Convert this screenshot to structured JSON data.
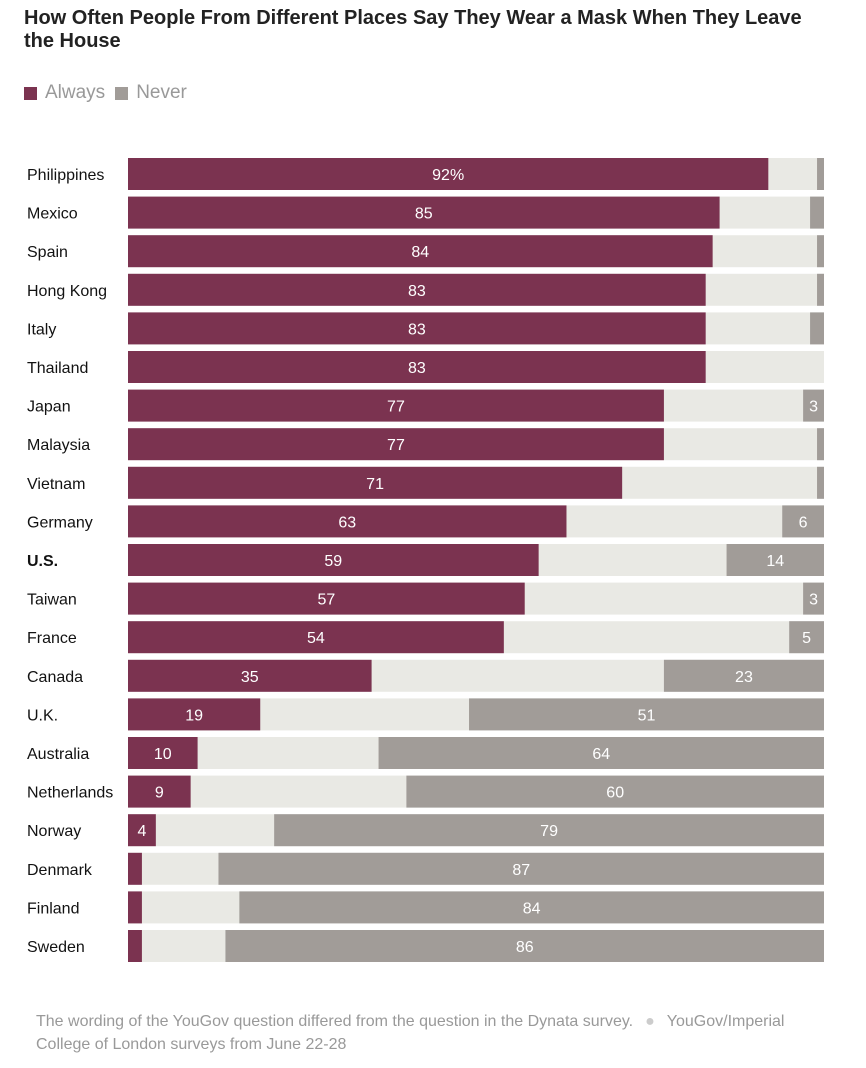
{
  "title": "How Often People From Different Places Say They Wear a Mask When They Leave the House",
  "legend": [
    {
      "label": "Always",
      "color": "#7b3350"
    },
    {
      "label": "Never",
      "color": "#a19c98"
    }
  ],
  "footer": {
    "note": "The wording of the YouGov question differed from the question in the Dynata survey.",
    "source": "YouGov/Imperial College of London surveys from June 22-28"
  },
  "chart_data": {
    "type": "bar",
    "orientation": "horizontal",
    "stacked": true,
    "title": "How Often People From Different Places Say They Wear a Mask When They Leave the House",
    "xlim": [
      0,
      100
    ],
    "unit": "%",
    "highlight": "U.S.",
    "colors": {
      "always": "#7b3350",
      "middle": "#e9e9e4",
      "never": "#a19c98"
    },
    "categories": [
      "Philippines",
      "Mexico",
      "Spain",
      "Hong Kong",
      "Italy",
      "Thailand",
      "Japan",
      "Malaysia",
      "Vietnam",
      "Germany",
      "U.S.",
      "Taiwan",
      "France",
      "Canada",
      "U.K.",
      "Australia",
      "Netherlands",
      "Norway",
      "Denmark",
      "Finland",
      "Sweden"
    ],
    "series": [
      {
        "name": "Always",
        "values": [
          92,
          85,
          84,
          83,
          83,
          83,
          77,
          77,
          71,
          63,
          59,
          57,
          54,
          35,
          19,
          10,
          9,
          4,
          2,
          2,
          2
        ]
      },
      {
        "name": "Never",
        "values": [
          1,
          2,
          1,
          1,
          2,
          0,
          3,
          1,
          1,
          6,
          14,
          3,
          5,
          23,
          51,
          64,
          60,
          79,
          87,
          84,
          86
        ]
      }
    ],
    "value_labels": {
      "always": [
        "92%",
        "85",
        "84",
        "83",
        "83",
        "83",
        "77",
        "77",
        "71",
        "63",
        "59",
        "57",
        "54",
        "35",
        "19",
        "10",
        "9",
        "4",
        "",
        "",
        ""
      ],
      "never": [
        "",
        "",
        "",
        "",
        "",
        "",
        "3",
        "",
        "",
        "6",
        "14",
        "3",
        "5",
        "23",
        "51",
        "64",
        "60",
        "79",
        "87",
        "84",
        "86"
      ]
    }
  }
}
